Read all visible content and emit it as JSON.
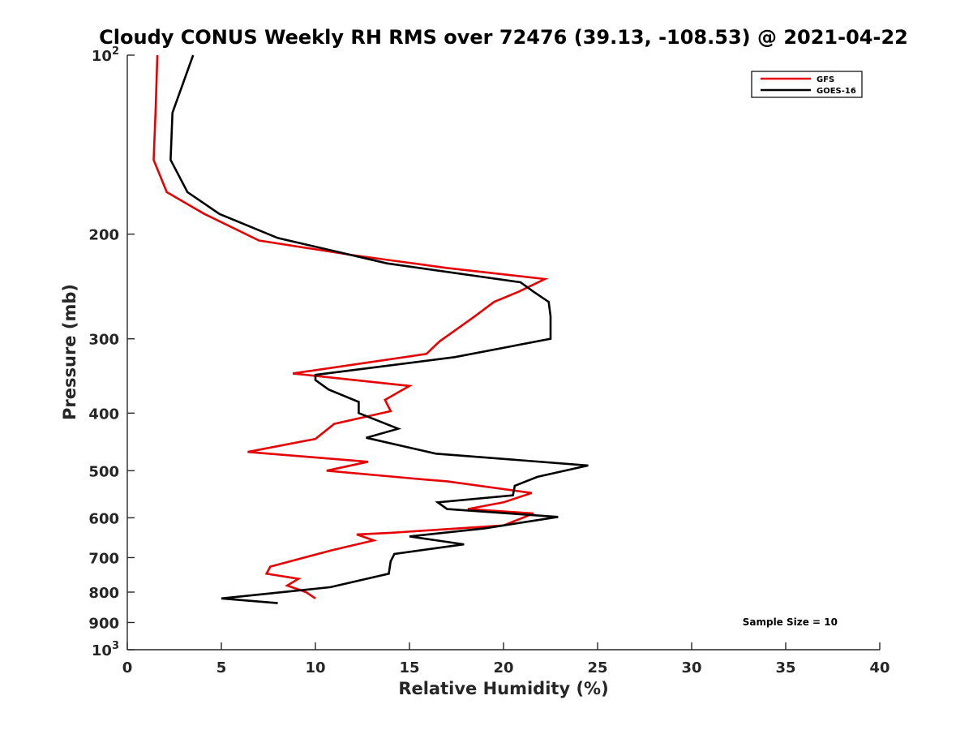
{
  "chart_data": {
    "type": "line",
    "title": "Cloudy CONUS Weekly RH RMS over 72476 (39.13, -108.53) @ 2021-04-22",
    "xlabel": "Relative Humidity (%)",
    "ylabel": "Pressure (mb)",
    "xlim": [
      0,
      40
    ],
    "ylim": [
      100,
      1000
    ],
    "y_scale": "log",
    "y_reversed": true,
    "grid": false,
    "legend_position": "top-right",
    "annotation": "Sample Size = 10",
    "x_ticks": [
      0,
      5,
      10,
      15,
      20,
      25,
      30,
      35,
      40
    ],
    "x_tick_labels": [
      "0",
      "5",
      "10",
      "15",
      "20",
      "25",
      "30",
      "35",
      "40"
    ],
    "y_ticks": [
      100,
      200,
      300,
      400,
      500,
      600,
      700,
      800,
      900,
      1000
    ],
    "y_tick_labels": [
      {
        "base": "10",
        "exp": "2"
      },
      {
        "base": "200",
        "exp": ""
      },
      {
        "base": "300",
        "exp": ""
      },
      {
        "base": "400",
        "exp": ""
      },
      {
        "base": "500",
        "exp": ""
      },
      {
        "base": "600",
        "exp": ""
      },
      {
        "base": "700",
        "exp": ""
      },
      {
        "base": "800",
        "exp": ""
      },
      {
        "base": "900",
        "exp": ""
      },
      {
        "base": "10",
        "exp": "3"
      }
    ],
    "series": [
      {
        "name": "GFS",
        "color": "#e60000",
        "points": [
          [
            1.6,
            100
          ],
          [
            1.5,
            125
          ],
          [
            1.4,
            150
          ],
          [
            2.1,
            170
          ],
          [
            4.1,
            185
          ],
          [
            7.0,
            205
          ],
          [
            12.0,
            217
          ],
          [
            17.0,
            228
          ],
          [
            22.2,
            238
          ],
          [
            20.8,
            250
          ],
          [
            19.5,
            260
          ],
          [
            18.4,
            276
          ],
          [
            16.6,
            303
          ],
          [
            15.9,
            318
          ],
          [
            8.8,
            343
          ],
          [
            15.0,
            360
          ],
          [
            13.7,
            380
          ],
          [
            14.0,
            397
          ],
          [
            11.0,
            417
          ],
          [
            10.0,
            442
          ],
          [
            6.4,
            465
          ],
          [
            12.8,
            483
          ],
          [
            10.6,
            500
          ],
          [
            16.0,
            518
          ],
          [
            17.0,
            521
          ],
          [
            21.5,
            545
          ],
          [
            20.0,
            565
          ],
          [
            18.1,
            580
          ],
          [
            21.6,
            590
          ],
          [
            20.0,
            618
          ],
          [
            14.0,
            636
          ],
          [
            12.2,
            640
          ],
          [
            13.1,
            655
          ],
          [
            10.9,
            680
          ],
          [
            7.6,
            725
          ],
          [
            7.4,
            745
          ],
          [
            9.1,
            760
          ],
          [
            8.5,
            780
          ],
          [
            9.5,
            800
          ],
          [
            10.0,
            820
          ]
        ]
      },
      {
        "name": "GOES-16",
        "color": "#000000",
        "points": [
          [
            3.5,
            100
          ],
          [
            2.4,
            125
          ],
          [
            2.3,
            150
          ],
          [
            3.2,
            170
          ],
          [
            4.9,
            185
          ],
          [
            8.0,
            203
          ],
          [
            13.8,
            224
          ],
          [
            20.9,
            241
          ],
          [
            21.6,
            250
          ],
          [
            22.4,
            260
          ],
          [
            22.5,
            275
          ],
          [
            22.5,
            300
          ],
          [
            17.4,
            322
          ],
          [
            10.0,
            345
          ],
          [
            10.0,
            352
          ],
          [
            10.7,
            365
          ],
          [
            12.3,
            383
          ],
          [
            12.3,
            400
          ],
          [
            14.4,
            425
          ],
          [
            12.7,
            440
          ],
          [
            16.4,
            468
          ],
          [
            24.5,
            490
          ],
          [
            21.8,
            512
          ],
          [
            20.6,
            530
          ],
          [
            20.5,
            550
          ],
          [
            16.5,
            565
          ],
          [
            17.0,
            580
          ],
          [
            22.9,
            598
          ],
          [
            19.0,
            625
          ],
          [
            15.0,
            645
          ],
          [
            17.9,
            665
          ],
          [
            14.2,
            690
          ],
          [
            14.0,
            710
          ],
          [
            13.9,
            745
          ],
          [
            10.8,
            785
          ],
          [
            5.0,
            820
          ],
          [
            8.0,
            835
          ]
        ]
      }
    ]
  }
}
